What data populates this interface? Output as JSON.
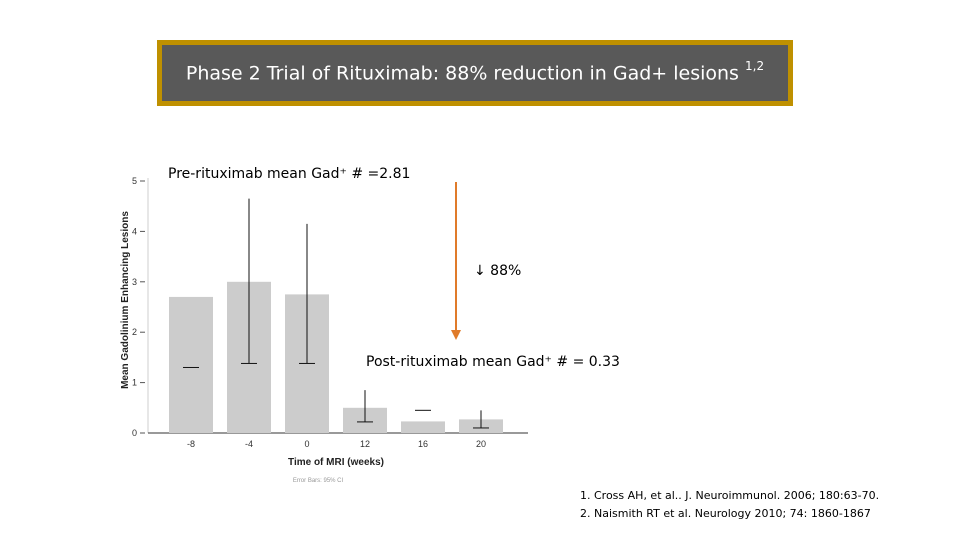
{
  "slide": {
    "title": "Phase 2 Trial of Rituximab: 88% reduction in Gad+ lesions",
    "title_superscript": "1,2",
    "pre_label": "Pre-rituximab mean Gad⁺ # =2.81",
    "post_label": "Post-rituximab mean Gad⁺ # = 0.33",
    "reduction_label": "↓ 88%",
    "references": [
      "1. Cross AH, et al.. J. Neuroimmunol. 2006; 180:63-70.",
      "2. Naismith RT et al. Neurology 2010; 74: 1860-1867"
    ],
    "colors": {
      "title_bg": "#595959",
      "title_border": "#bf9000",
      "arrow": "#e07b2a",
      "bar": "#cccccc"
    }
  },
  "chart_data": {
    "type": "bar",
    "xlabel": "Time of MRI (weeks)",
    "ylabel": "Mean Gadolinium Enhancing Lesions",
    "categories": [
      "-8",
      "-4",
      "0",
      "12",
      "16",
      "20"
    ],
    "values": [
      2.7,
      3.0,
      2.75,
      0.5,
      0.23,
      0.27
    ],
    "error_upper": [
      null,
      4.65,
      4.15,
      0.85,
      null,
      0.45
    ],
    "error_lower": [
      1.3,
      1.38,
      1.38,
      0.22,
      0.45,
      0.1
    ],
    "ylim": [
      0,
      5
    ],
    "yticks": [
      0,
      1,
      2,
      3,
      4,
      5
    ],
    "footnote": "Error Bars: 95% CI"
  }
}
